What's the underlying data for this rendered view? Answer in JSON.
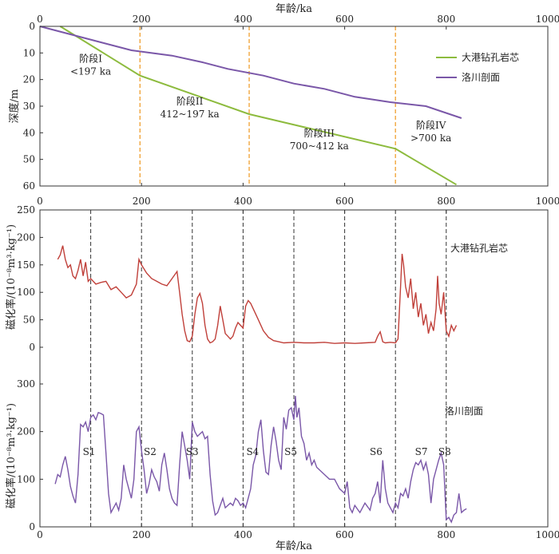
{
  "chart_data": [
    {
      "type": "line",
      "xlabel": "年龄/ka",
      "ylabel": "深度/m",
      "xlim": [
        0,
        1000
      ],
      "ylim": [
        60,
        0
      ],
      "y_inverted": true,
      "x_ticks": [
        "0",
        "200",
        "400",
        "600",
        "800",
        "1000"
      ],
      "y_ticks": [
        "0",
        "10",
        "20",
        "30",
        "40",
        "50",
        "60"
      ],
      "legend_position": "top-right",
      "boundaries": [
        197,
        412,
        700
      ],
      "stages": [
        {
          "line1": "阶段I",
          "line2": "<197 ka",
          "x": 100,
          "y": 20
        },
        {
          "line1": "阶段II",
          "line2": "412~197 ka",
          "x": 295,
          "y": 36
        },
        {
          "line1": "阶段III",
          "line2": "700~412 ka",
          "x": 550,
          "y": 48
        },
        {
          "line1": "阶段IV",
          "line2": ">700 ka",
          "x": 770,
          "y": 45
        }
      ],
      "series": [
        {
          "name": "大港钻孔岩芯",
          "color": "#8dbb3e",
          "x": [
            40,
            197,
            412,
            700,
            820
          ],
          "y": [
            0,
            18.5,
            33,
            46,
            59.5
          ]
        },
        {
          "name": "洛川剖面",
          "color": "#7a57a8",
          "x": [
            0,
            60,
            120,
            180,
            260,
            320,
            370,
            440,
            500,
            560,
            620,
            690,
            760,
            830
          ],
          "y": [
            0,
            3,
            6,
            9,
            11,
            13.5,
            16,
            18.5,
            21.5,
            23.5,
            26.5,
            28.5,
            30,
            34.5
          ]
        }
      ]
    },
    {
      "type": "line",
      "xlabel": "",
      "ylabel": "磁化率/(10⁻⁸m³·kg⁻¹)",
      "xlim": [
        0,
        1000
      ],
      "ylim": [
        0,
        250
      ],
      "x_ticks": [
        "0",
        "200",
        "400",
        "600",
        "800",
        "1000"
      ],
      "y_ticks": [
        "0",
        "50",
        "100",
        "150",
        "200",
        "250"
      ],
      "series_label": "大港钻孔岩芯",
      "color": "#c0403a",
      "boundaries": [
        100,
        200,
        300,
        400,
        500,
        600,
        700,
        800
      ],
      "x": [
        35,
        40,
        45,
        50,
        55,
        60,
        65,
        70,
        75,
        80,
        85,
        90,
        95,
        100,
        110,
        120,
        130,
        140,
        150,
        160,
        170,
        180,
        190,
        195,
        200,
        210,
        220,
        230,
        240,
        250,
        260,
        270,
        275,
        280,
        285,
        290,
        295,
        300,
        305,
        310,
        315,
        320,
        325,
        330,
        335,
        340,
        345,
        350,
        355,
        360,
        365,
        370,
        375,
        380,
        385,
        390,
        395,
        400,
        405,
        410,
        415,
        420,
        430,
        440,
        450,
        460,
        470,
        480,
        500,
        520,
        540,
        560,
        580,
        600,
        620,
        640,
        660,
        665,
        670,
        675,
        680,
        690,
        700,
        705,
        710,
        713,
        716,
        720,
        725,
        730,
        735,
        740,
        745,
        750,
        755,
        760,
        765,
        770,
        775,
        780,
        783,
        786,
        790,
        795,
        800,
        805,
        810,
        815,
        820
      ],
      "y": [
        160,
        168,
        185,
        160,
        145,
        150,
        130,
        125,
        140,
        160,
        130,
        155,
        120,
        125,
        115,
        118,
        120,
        105,
        110,
        100,
        90,
        95,
        115,
        160,
        150,
        135,
        125,
        120,
        115,
        112,
        125,
        138,
        100,
        60,
        30,
        12,
        10,
        20,
        60,
        90,
        98,
        80,
        40,
        15,
        8,
        10,
        15,
        40,
        75,
        50,
        25,
        20,
        15,
        20,
        35,
        45,
        40,
        35,
        75,
        85,
        80,
        70,
        50,
        30,
        18,
        12,
        10,
        8,
        9,
        8,
        8,
        9,
        7,
        8,
        7,
        8,
        9,
        20,
        28,
        10,
        8,
        9,
        8,
        15,
        110,
        170,
        150,
        110,
        90,
        125,
        70,
        100,
        55,
        80,
        40,
        60,
        25,
        45,
        30,
        70,
        130,
        80,
        60,
        100,
        30,
        20,
        40,
        30,
        40
      ]
    },
    {
      "type": "line",
      "xlabel": "年龄/ka",
      "ylabel": "磁化率/(10⁻⁸m³·kg⁻¹)",
      "xlim": [
        0,
        1000
      ],
      "ylim": [
        0,
        300
      ],
      "x_ticks": [
        "0",
        "200",
        "400",
        "600",
        "800",
        "1000"
      ],
      "y_ticks": [
        "0",
        "100",
        "200",
        "300"
      ],
      "series_label": "洛川剖面",
      "color": "#7a57a8",
      "boundaries": [
        100,
        200,
        300,
        400,
        500,
        600,
        700,
        800
      ],
      "soil_labels": [
        {
          "text": "S1",
          "x": 100
        },
        {
          "text": "S2",
          "x": 220
        },
        {
          "text": "S3",
          "x": 303
        },
        {
          "text": "S4",
          "x": 422
        },
        {
          "text": "S5",
          "x": 497
        },
        {
          "text": "S6",
          "x": 665
        },
        {
          "text": "S7",
          "x": 754
        },
        {
          "text": "S8",
          "x": 800
        }
      ],
      "x": [
        30,
        35,
        40,
        45,
        50,
        55,
        60,
        65,
        70,
        75,
        80,
        85,
        90,
        95,
        100,
        105,
        110,
        115,
        120,
        125,
        130,
        135,
        140,
        145,
        150,
        155,
        160,
        165,
        170,
        175,
        180,
        185,
        190,
        195,
        200,
        205,
        210,
        215,
        220,
        225,
        230,
        235,
        240,
        245,
        250,
        255,
        260,
        265,
        270,
        275,
        280,
        285,
        290,
        295,
        300,
        305,
        310,
        315,
        320,
        325,
        330,
        335,
        340,
        345,
        350,
        355,
        360,
        365,
        370,
        375,
        380,
        385,
        390,
        395,
        400,
        405,
        410,
        415,
        420,
        425,
        430,
        435,
        440,
        445,
        450,
        455,
        460,
        465,
        470,
        475,
        480,
        485,
        490,
        495,
        500,
        503,
        506,
        510,
        515,
        520,
        525,
        530,
        535,
        540,
        545,
        550,
        560,
        570,
        580,
        590,
        600,
        605,
        610,
        615,
        620,
        630,
        640,
        650,
        655,
        660,
        665,
        670,
        675,
        680,
        685,
        690,
        695,
        700,
        705,
        710,
        715,
        720,
        725,
        730,
        735,
        740,
        745,
        750,
        755,
        760,
        765,
        770,
        775,
        780,
        785,
        790,
        795,
        800,
        805,
        810,
        815,
        820,
        825,
        830,
        835,
        840
      ],
      "y": [
        90,
        110,
        105,
        130,
        148,
        120,
        85,
        65,
        50,
        110,
        215,
        210,
        220,
        200,
        230,
        235,
        225,
        240,
        238,
        235,
        155,
        70,
        30,
        40,
        50,
        35,
        60,
        130,
        100,
        80,
        60,
        100,
        200,
        210,
        160,
        120,
        70,
        90,
        120,
        105,
        95,
        75,
        130,
        155,
        120,
        80,
        60,
        50,
        45,
        130,
        200,
        170,
        140,
        100,
        220,
        200,
        190,
        195,
        200,
        185,
        190,
        110,
        55,
        25,
        30,
        45,
        60,
        40,
        45,
        50,
        45,
        60,
        55,
        45,
        50,
        40,
        60,
        80,
        130,
        150,
        200,
        225,
        160,
        115,
        110,
        170,
        210,
        180,
        140,
        120,
        230,
        205,
        245,
        250,
        225,
        275,
        230,
        250,
        190,
        175,
        140,
        155,
        130,
        140,
        125,
        120,
        110,
        100,
        100,
        80,
        70,
        95,
        40,
        30,
        45,
        30,
        50,
        35,
        60,
        70,
        95,
        50,
        140,
        80,
        50,
        40,
        30,
        50,
        40,
        70,
        65,
        80,
        60,
        95,
        120,
        135,
        130,
        140,
        120,
        135,
        110,
        50,
        100,
        120,
        140,
        155,
        130,
        15,
        20,
        10,
        25,
        30,
        70,
        30,
        35,
        38
      ]
    }
  ]
}
